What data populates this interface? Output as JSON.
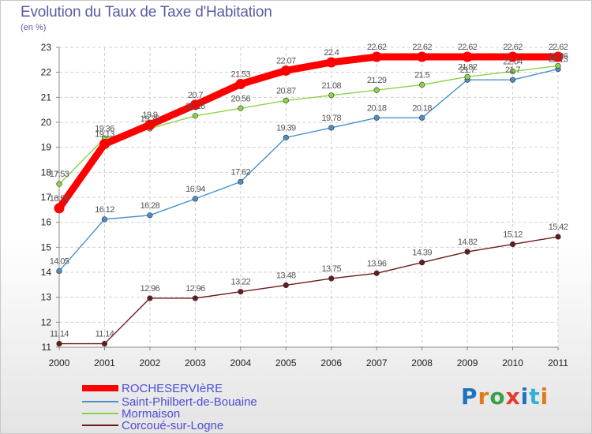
{
  "header": {
    "title": "Evolution du Taux de Taxe d'Habitation",
    "unit": "(en %)"
  },
  "logo": {
    "text": "Proxiti"
  },
  "chart_data": {
    "type": "line",
    "x": [
      "2000",
      "2001",
      "2002",
      "2003",
      "2004",
      "2005",
      "2006",
      "2007",
      "2008",
      "2009",
      "2010",
      "2011"
    ],
    "ylim": [
      11,
      23
    ],
    "yticks": [
      11,
      12,
      13,
      14,
      15,
      16,
      17,
      18,
      19,
      20,
      21,
      22,
      23
    ],
    "grid": true,
    "legend_position": "bottom-left",
    "series": [
      {
        "name": "ROCHESERVIèRE",
        "color": "#ff0000",
        "values": [
          16.56,
          19.13,
          19.9,
          20.7,
          21.53,
          22.07,
          22.4,
          22.62,
          22.62,
          22.62,
          22.62,
          22.62
        ],
        "labels": [
          "16.56",
          "19.13",
          "19.9",
          "20.7",
          "21.53",
          "22.07",
          "22.4",
          "22.62",
          "22.62",
          "22.62",
          "22.62",
          "22.62"
        ]
      },
      {
        "name": "Saint-Philbert-de-Bouaine",
        "color": "#4a90c8",
        "values": [
          14.05,
          16.12,
          16.28,
          16.94,
          17.62,
          19.39,
          19.78,
          20.18,
          20.18,
          21.7,
          21.7,
          22.13
        ],
        "labels": [
          "14.05",
          "16.12",
          "16.28",
          "16.94",
          "17.62",
          "19.39",
          "19.78",
          "20.18",
          "20.18",
          "21.7",
          "21.7",
          "22.13"
        ]
      },
      {
        "name": "Mormaison",
        "color": "#8cd34a",
        "values": [
          17.53,
          19.36,
          19.75,
          20.26,
          20.56,
          20.87,
          21.08,
          21.29,
          21.5,
          21.82,
          22.04,
          22.26
        ],
        "labels": [
          "17.53",
          "19.36",
          "19.75",
          "20.26",
          "20.56",
          "20.87",
          "21.08",
          "21.29",
          "21.5",
          "21.82",
          "22.04",
          "22.26"
        ]
      },
      {
        "name": "Corcoué-sur-Logne",
        "color": "#6b1a1a",
        "values": [
          11.14,
          11.14,
          12.96,
          12.96,
          13.22,
          13.48,
          13.75,
          13.96,
          14.39,
          14.82,
          15.12,
          15.42
        ],
        "labels": [
          "11.14",
          "11.14",
          "12.96",
          "12.96",
          "13.22",
          "13.48",
          "13.75",
          "13.96",
          "14.39",
          "14.82",
          "15.12",
          "15.42"
        ]
      }
    ]
  }
}
